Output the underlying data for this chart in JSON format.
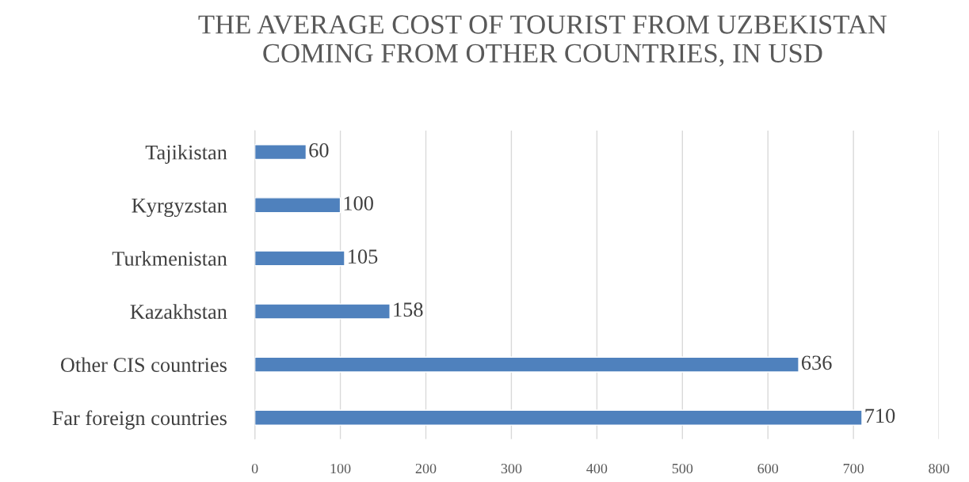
{
  "chart_data": {
    "type": "bar",
    "orientation": "horizontal",
    "title": "THE AVERAGE COST OF TOURIST FROM UZBEKISTAN\nCOMING FROM OTHER COUNTRIES, IN USD",
    "categories": [
      "Tajikistan",
      "Kyrgyzstan",
      "Turkmenistan",
      "Kazakhstan",
      "Other CIS countries",
      "Far foreign countries"
    ],
    "values": [
      60,
      100,
      105,
      158,
      636,
      710
    ],
    "color": "#4f81bd",
    "xlim": [
      0,
      800
    ],
    "xticks": [
      0,
      100,
      200,
      300,
      400,
      500,
      600,
      700,
      800
    ],
    "grid": "x",
    "data_labels": true,
    "legend": false
  }
}
